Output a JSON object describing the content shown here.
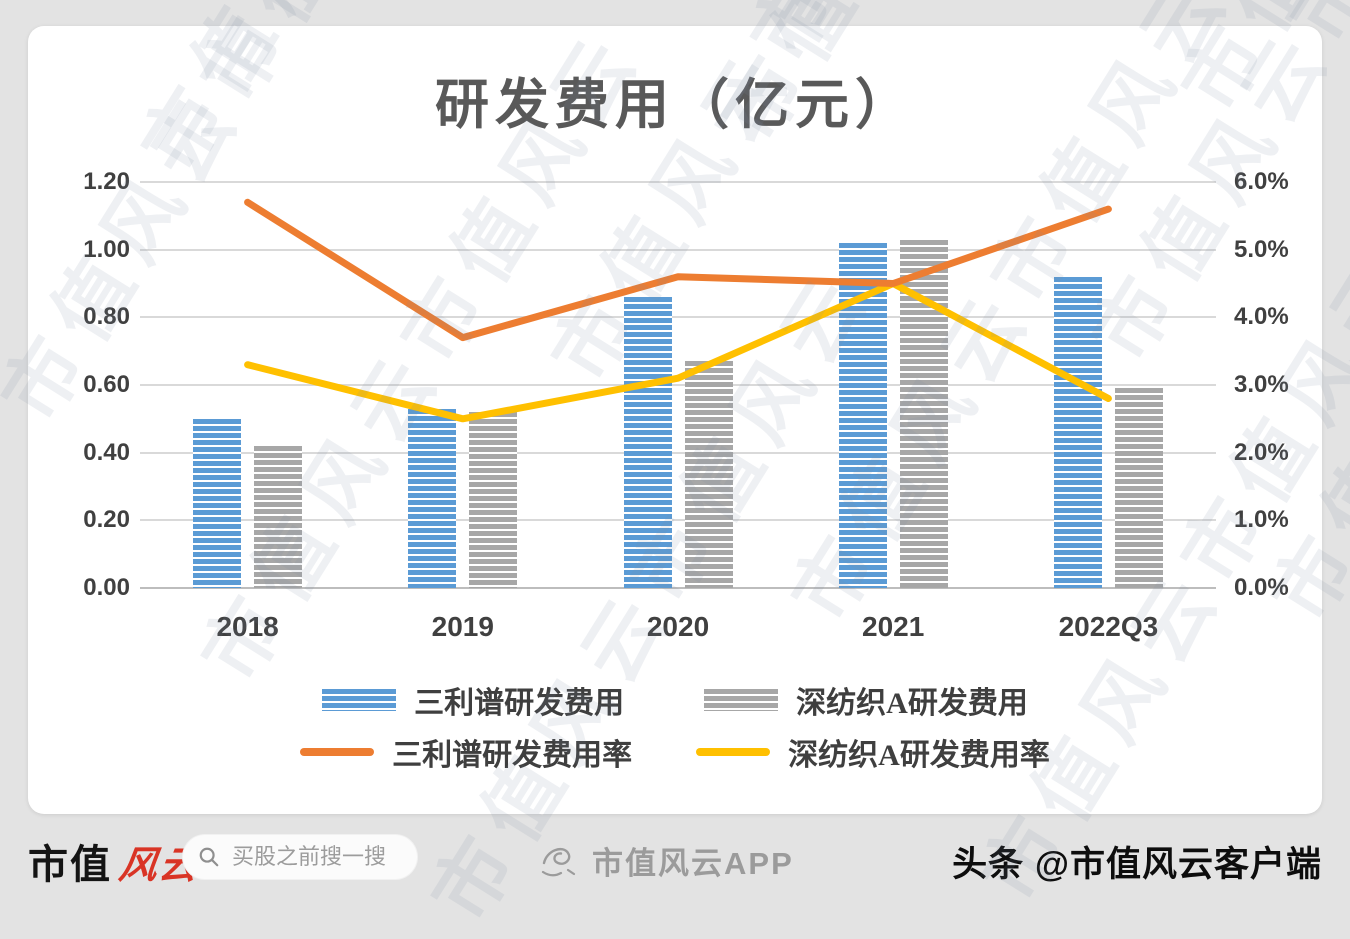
{
  "watermark": {
    "text": "市值风云"
  },
  "chart": {
    "title": "研发费用（亿元）",
    "y_left_labels": [
      "1.20",
      "1.00",
      "0.80",
      "0.60",
      "0.40",
      "0.20",
      "0.00"
    ],
    "y_right_labels": [
      "6.0%",
      "5.0%",
      "4.0%",
      "3.0%",
      "2.0%",
      "1.0%",
      "0.0%"
    ],
    "x_labels": [
      "2018",
      "2019",
      "2020",
      "2021",
      "2022Q3"
    ]
  },
  "chart_data": {
    "type": "bar",
    "subtype": "combo-bar-line",
    "title": "研发费用（亿元）",
    "categories": [
      "2018",
      "2019",
      "2020",
      "2021",
      "2022Q3"
    ],
    "series": [
      {
        "name": "三利谱研发费用",
        "type": "bar",
        "axis": "left",
        "color": "#5B9BD5",
        "values": [
          0.5,
          0.53,
          0.86,
          1.02,
          0.92
        ]
      },
      {
        "name": "深纺织A研发费用",
        "type": "bar",
        "axis": "left",
        "color": "#A7A7A7",
        "values": [
          0.42,
          0.52,
          0.67,
          1.03,
          0.59
        ]
      },
      {
        "name": "三利谱研发费用率",
        "type": "line",
        "axis": "right",
        "color": "#ED7D31",
        "unit": "%",
        "values": [
          5.7,
          3.7,
          4.6,
          4.5,
          5.6
        ]
      },
      {
        "name": "深纺织A研发费用率",
        "type": "line",
        "axis": "right",
        "color": "#FFC000",
        "unit": "%",
        "values": [
          3.3,
          2.5,
          3.1,
          4.5,
          2.8
        ]
      }
    ],
    "y_left": {
      "min": 0,
      "max": 1.2,
      "step": 0.2
    },
    "y_right": {
      "min": 0,
      "max": 6.0,
      "step": 1.0,
      "unit": "%"
    },
    "grid": true,
    "legend_position": "bottom"
  },
  "footer": {
    "brand_black": "市值",
    "brand_red": "风云",
    "search_placeholder": "买股之前搜一搜",
    "app_name": "市值风云APP",
    "credit": "头条 @市值风云客户端"
  }
}
